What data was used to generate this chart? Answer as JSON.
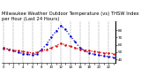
{
  "title": "Milwaukee Weather Outdoor Temperature (vs) THSW Index per Hour (Last 24 Hours)",
  "title_fontsize": 3.8,
  "hours": [
    0,
    1,
    2,
    3,
    4,
    5,
    6,
    7,
    8,
    9,
    10,
    11,
    12,
    13,
    14,
    15,
    16,
    17,
    18,
    19,
    20,
    21,
    22,
    23
  ],
  "temp": [
    55,
    54,
    53,
    52,
    51,
    50,
    49,
    50,
    52,
    54,
    56,
    59,
    62,
    60,
    58,
    56,
    54,
    53,
    52,
    51,
    50,
    49,
    49,
    48
  ],
  "thsw": [
    56,
    54,
    52,
    50,
    48,
    47,
    46,
    48,
    54,
    61,
    71,
    79,
    86,
    81,
    72,
    64,
    56,
    52,
    49,
    47,
    46,
    45,
    44,
    43
  ],
  "temp_color": "#dd0000",
  "thsw_color": "#0000dd",
  "bg_color": "#ffffff",
  "ylim_min": 35,
  "ylim_max": 92,
  "yticks": [
    40,
    50,
    60,
    70,
    80
  ],
  "ytick_labels": [
    "40",
    "50",
    "60",
    "70",
    "80"
  ],
  "grid_color": "#888888",
  "line_style": "dotted",
  "line_width": 0.9,
  "marker": ".",
  "marker_size": 1.5
}
